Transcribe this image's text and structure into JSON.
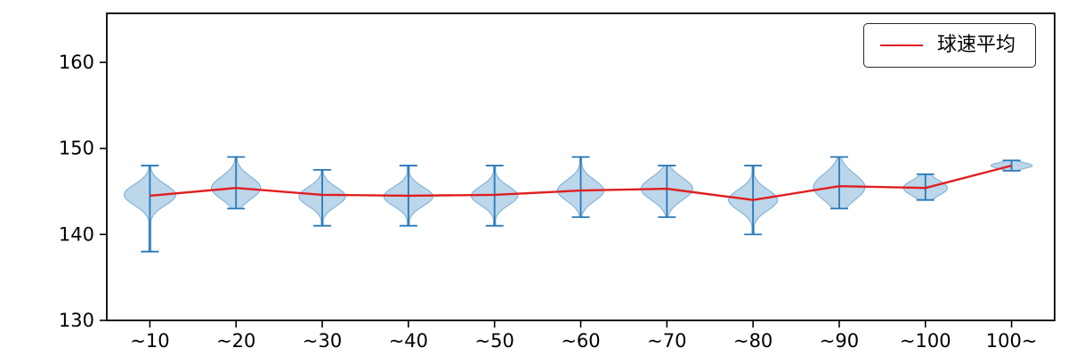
{
  "chart_data": {
    "type": "violin",
    "title": "",
    "xlabel": "",
    "ylabel": "",
    "grid": false,
    "categories": [
      "~10",
      "~20",
      "~30",
      "~40",
      "~50",
      "~60",
      "~70",
      "~80",
      "~90",
      "~100",
      "100~"
    ],
    "yticks": [
      130,
      140,
      150,
      160
    ],
    "ylim": [
      130,
      165.7
    ],
    "legend": {
      "label": "球速平均",
      "position": "upper right"
    },
    "colors": {
      "mean_line": "#df1f1f",
      "violin_fill": "#bcd6ea",
      "violin_edge": "#7aadd6",
      "violin_stem": "#2878b8",
      "axis": "#000000",
      "tick_label": "#000000"
    },
    "mean_series": {
      "name": "球速平均",
      "values": [
        144.5,
        145.4,
        144.6,
        144.5,
        144.6,
        145.1,
        145.3,
        144.0,
        145.6,
        145.4,
        148.0
      ]
    },
    "violins": [
      {
        "category": "~10",
        "min": 138.0,
        "max": 148.0,
        "peak": 144.6,
        "sigma": 1.2,
        "width": 1.0
      },
      {
        "category": "~20",
        "min": 143.0,
        "max": 149.0,
        "peak": 145.4,
        "sigma": 1.3,
        "width": 0.95
      },
      {
        "category": "~30",
        "min": 141.0,
        "max": 147.5,
        "peak": 144.4,
        "sigma": 1.1,
        "width": 0.9
      },
      {
        "category": "~40",
        "min": 141.0,
        "max": 148.0,
        "peak": 144.4,
        "sigma": 1.1,
        "width": 0.95
      },
      {
        "category": "~50",
        "min": 141.0,
        "max": 148.0,
        "peak": 144.5,
        "sigma": 1.1,
        "width": 0.9
      },
      {
        "category": "~60",
        "min": 142.0,
        "max": 149.0,
        "peak": 145.1,
        "sigma": 1.2,
        "width": 0.9
      },
      {
        "category": "~70",
        "min": 142.0,
        "max": 148.0,
        "peak": 145.3,
        "sigma": 1.3,
        "width": 1.0
      },
      {
        "category": "~80",
        "min": 140.0,
        "max": 148.0,
        "peak": 144.0,
        "sigma": 1.2,
        "width": 0.95
      },
      {
        "category": "~90",
        "min": 143.0,
        "max": 149.0,
        "peak": 145.5,
        "sigma": 1.5,
        "width": 1.0
      },
      {
        "category": "~100",
        "min": 144.0,
        "max": 147.0,
        "peak": 145.4,
        "sigma": 0.9,
        "width": 0.85
      },
      {
        "category": "100~",
        "min": 147.4,
        "max": 148.6,
        "peak": 148.0,
        "sigma": 0.35,
        "width": 0.8
      }
    ]
  }
}
